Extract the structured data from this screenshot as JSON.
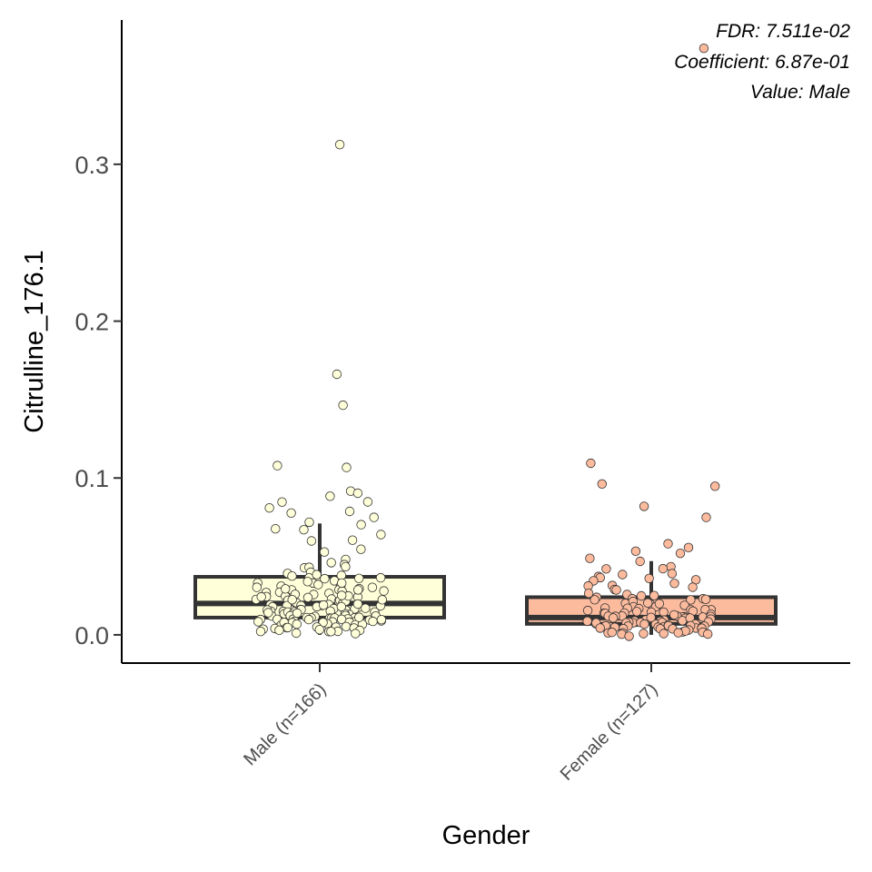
{
  "chart_data": {
    "type": "box",
    "xlabel": "Gender",
    "ylabel": "Citrulline_176.1",
    "ylim": [
      -0.018,
      0.392
    ],
    "yticks": [
      0.0,
      0.1,
      0.2,
      0.3
    ],
    "ytick_labels": [
      "0.0",
      "0.1",
      "0.2",
      "0.3"
    ],
    "grid": false,
    "annotations": [
      "FDR: 7.511e-02",
      "Coefficient: 6.87e-01",
      "Value: Male"
    ],
    "groups": [
      {
        "label": "Male (n=166)",
        "color": "#FFFFD9",
        "q1": 0.011,
        "median": 0.02,
        "q3": 0.037,
        "whisker_low": 0.0,
        "whisker_high": 0.071,
        "outliers": [
          0.313,
          0.165,
          0.146,
          0.107,
          0.106,
          0.092,
          0.091,
          0.089,
          0.084,
          0.084,
          0.081,
          0.079,
          0.078,
          0.074,
          0.072
        ],
        "points": [
          0.313,
          0.165,
          0.146,
          0.107,
          0.106,
          0.092,
          0.091,
          0.089,
          0.084,
          0.084,
          0.081,
          0.079,
          0.078,
          0.074,
          0.072,
          0.071,
          0.068,
          0.067,
          0.064,
          0.061,
          0.059,
          0.055,
          0.052,
          0.049,
          0.047,
          0.045,
          0.044,
          0.043,
          0.042,
          0.041,
          0.04,
          0.039,
          0.038,
          0.037,
          0.036,
          0.035,
          0.034,
          0.033,
          0.033,
          0.032,
          0.031,
          0.031,
          0.03,
          0.03,
          0.029,
          0.029,
          0.028,
          0.028,
          0.027,
          0.027,
          0.026,
          0.026,
          0.025,
          0.025,
          0.025,
          0.024,
          0.024,
          0.023,
          0.023,
          0.023,
          0.022,
          0.022,
          0.022,
          0.021,
          0.021,
          0.021,
          0.02,
          0.02,
          0.02,
          0.02,
          0.019,
          0.019,
          0.019,
          0.018,
          0.018,
          0.018,
          0.018,
          0.017,
          0.017,
          0.017,
          0.016,
          0.016,
          0.016,
          0.016,
          0.015,
          0.015,
          0.015,
          0.015,
          0.014,
          0.014,
          0.014,
          0.014,
          0.013,
          0.013,
          0.013,
          0.013,
          0.012,
          0.012,
          0.012,
          0.012,
          0.011,
          0.011,
          0.011,
          0.011,
          0.011,
          0.01,
          0.01,
          0.01,
          0.01,
          0.01,
          0.009,
          0.009,
          0.009,
          0.009,
          0.009,
          0.008,
          0.008,
          0.008,
          0.008,
          0.008,
          0.007,
          0.007,
          0.007,
          0.007,
          0.007,
          0.006,
          0.006,
          0.006,
          0.006,
          0.006,
          0.005,
          0.005,
          0.005,
          0.005,
          0.004,
          0.004,
          0.004,
          0.004,
          0.003,
          0.003,
          0.003,
          0.002,
          0.002,
          0.002,
          0.001,
          0.001,
          0.028,
          0.03,
          0.032,
          0.034,
          0.036,
          0.038,
          0.019,
          0.021,
          0.023,
          0.025,
          0.017,
          0.015,
          0.013,
          0.011,
          0.009,
          0.024,
          0.022,
          0.026,
          0.02,
          0.018
        ]
      },
      {
        "label": "Female (n=127)",
        "color": "#FDBB9E",
        "q1": 0.007,
        "median": 0.011,
        "q3": 0.024,
        "whisker_low": 0.0,
        "whisker_high": 0.047,
        "outliers": [
          0.374,
          0.109,
          0.097,
          0.095,
          0.083,
          0.075,
          0.057,
          0.055,
          0.054,
          0.053
        ],
        "points": [
          0.374,
          0.109,
          0.097,
          0.095,
          0.083,
          0.075,
          0.057,
          0.055,
          0.054,
          0.053,
          0.048,
          0.046,
          0.044,
          0.043,
          0.042,
          0.04,
          0.039,
          0.038,
          0.037,
          0.036,
          0.035,
          0.034,
          0.033,
          0.032,
          0.031,
          0.03,
          0.029,
          0.028,
          0.027,
          0.026,
          0.025,
          0.025,
          0.024,
          0.024,
          0.023,
          0.023,
          0.022,
          0.022,
          0.021,
          0.021,
          0.02,
          0.02,
          0.019,
          0.019,
          0.018,
          0.018,
          0.017,
          0.017,
          0.016,
          0.016,
          0.016,
          0.015,
          0.015,
          0.015,
          0.014,
          0.014,
          0.014,
          0.013,
          0.013,
          0.013,
          0.013,
          0.012,
          0.012,
          0.012,
          0.012,
          0.011,
          0.011,
          0.011,
          0.011,
          0.011,
          0.01,
          0.01,
          0.01,
          0.01,
          0.01,
          0.009,
          0.009,
          0.009,
          0.009,
          0.009,
          0.009,
          0.008,
          0.008,
          0.008,
          0.008,
          0.008,
          0.008,
          0.007,
          0.007,
          0.007,
          0.007,
          0.007,
          0.007,
          0.006,
          0.006,
          0.006,
          0.006,
          0.006,
          0.005,
          0.005,
          0.005,
          0.005,
          0.005,
          0.004,
          0.004,
          0.004,
          0.004,
          0.004,
          0.003,
          0.003,
          0.003,
          0.003,
          0.003,
          0.002,
          0.002,
          0.002,
          0.002,
          0.001,
          0.001,
          0.001,
          0.001,
          0.0,
          0.0,
          0.012,
          0.014,
          0.016,
          0.01
        ]
      }
    ]
  }
}
